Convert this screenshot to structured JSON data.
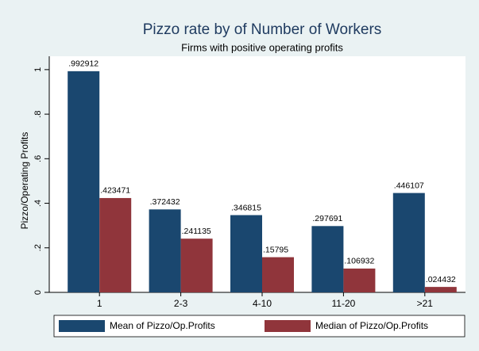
{
  "chart_data": {
    "type": "bar",
    "title": "Pizzo rate by of Number of Workers",
    "subtitle": "Firms with positive operating profits",
    "y_label": "Pizzo/Operating Profits",
    "categories": [
      "1",
      "2-3",
      "4-10",
      "11-20",
      ">21"
    ],
    "series": [
      {
        "name": "Mean of Pizzo/Op.Profits",
        "color": "#1a476f",
        "values": [
          0.992912,
          0.372432,
          0.346815,
          0.297691,
          0.446107
        ],
        "value_labels": [
          ".992912",
          ".372432",
          ".346815",
          ".297691",
          ".446107"
        ]
      },
      {
        "name": "Median of Pizzo/Op.Profits",
        "color": "#90353b",
        "values": [
          0.423471,
          0.241135,
          0.15795,
          0.106932,
          0.024432
        ],
        "value_labels": [
          ".423471",
          ".241135",
          ".15795",
          ".106932",
          ".024432"
        ]
      }
    ],
    "ylim": [
      0,
      1.06
    ],
    "yticks": [
      0,
      {
        "value": 0.2,
        "label": ".2"
      },
      {
        "value": 0.4,
        "label": ".4"
      },
      {
        "value": 0.6,
        "label": ".6"
      },
      {
        "value": 0.8,
        "label": ".8"
      },
      1
    ],
    "legend": "bottom"
  }
}
